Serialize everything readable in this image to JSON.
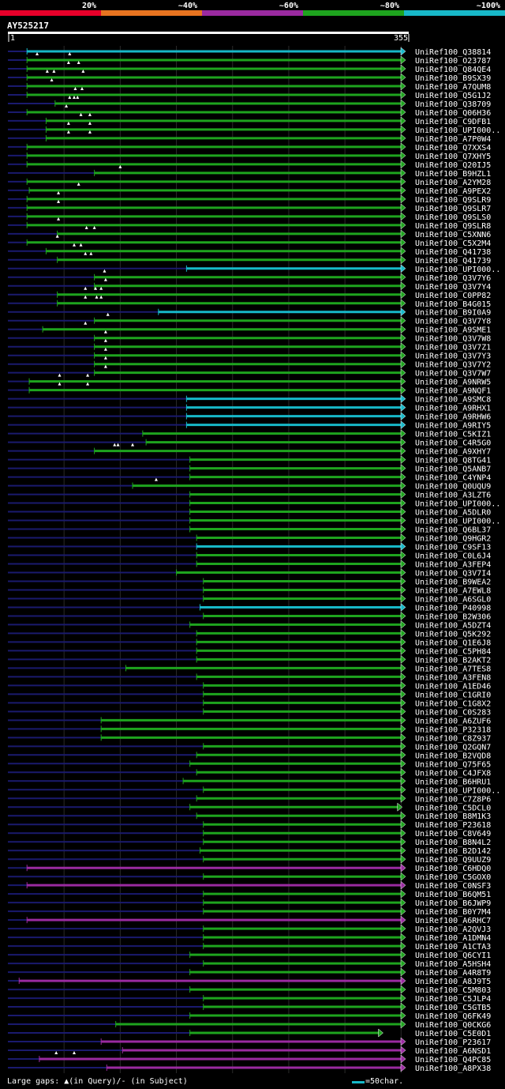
{
  "chart_data": {
    "type": "alignment-overview",
    "query_id": "AY525217",
    "scale": {
      "start_label": "1",
      "end_label": "355",
      "min": 1,
      "max": 355
    },
    "color_scale": [
      {
        "label": "20%",
        "color": "#e8002a"
      },
      {
        "label": "~40%",
        "color": "#e87420"
      },
      {
        "label": "~60%",
        "color": "#9a2aa0"
      },
      {
        "label": "~80%",
        "color": "#1ea41e"
      },
      {
        "label": "~100%",
        "color": "#17b8c8"
      }
    ],
    "footer": {
      "gaps_text": "Large gaps: ▲(in Query)/- (in Subject)",
      "scale_text": "=50char."
    },
    "hits": [
      {
        "name": "UniRef100_Q38814",
        "start": 18,
        "end": 355,
        "cls": 4,
        "qgaps": []
      },
      {
        "name": "UniRef100_O23787",
        "start": 18,
        "end": 355,
        "cls": 3,
        "qgaps": [
          27,
          56
        ]
      },
      {
        "name": "UniRef100_Q84QE4",
        "start": 18,
        "end": 355,
        "cls": 3,
        "qgaps": [
          55,
          64
        ]
      },
      {
        "name": "UniRef100_B9SX39",
        "start": 18,
        "end": 355,
        "cls": 3,
        "qgaps": [
          36,
          42,
          68
        ]
      },
      {
        "name": "UniRef100_A7QUM8",
        "start": 18,
        "end": 355,
        "cls": 3,
        "qgaps": [
          40
        ]
      },
      {
        "name": "UniRef100_Q5G1J2",
        "start": 18,
        "end": 355,
        "cls": 3,
        "qgaps": [
          61,
          67
        ]
      },
      {
        "name": "UniRef100_Q38709",
        "start": 43,
        "end": 355,
        "cls": 3,
        "qgaps": [
          56,
          60,
          63
        ]
      },
      {
        "name": "UniRef100_Q06H36",
        "start": 18,
        "end": 355,
        "cls": 3,
        "qgaps": [
          53
        ]
      },
      {
        "name": "UniRef100_C9DFB1",
        "start": 35,
        "end": 355,
        "cls": 3,
        "qgaps": [
          66,
          74
        ]
      },
      {
        "name": "UniRef100_UPI000..",
        "start": 35,
        "end": 355,
        "cls": 3,
        "qgaps": [
          55,
          74
        ]
      },
      {
        "name": "UniRef100_A7P0W4",
        "start": 35,
        "end": 355,
        "cls": 3,
        "qgaps": [
          55,
          74
        ]
      },
      {
        "name": "UniRef100_Q7XXS4",
        "start": 18,
        "end": 355,
        "cls": 3,
        "qgaps": []
      },
      {
        "name": "UniRef100_Q7XHY5",
        "start": 18,
        "end": 355,
        "cls": 3,
        "qgaps": []
      },
      {
        "name": "UniRef100_Q20IJ5",
        "start": 18,
        "end": 355,
        "cls": 3,
        "qgaps": []
      },
      {
        "name": "UniRef100_B9HZL1",
        "start": 78,
        "end": 355,
        "cls": 3,
        "qgaps": [
          101
        ]
      },
      {
        "name": "UniRef100_A2YM28",
        "start": 18,
        "end": 355,
        "cls": 3,
        "qgaps": []
      },
      {
        "name": "UniRef100_A9PEX2",
        "start": 20,
        "end": 355,
        "cls": 3,
        "qgaps": [
          64
        ]
      },
      {
        "name": "UniRef100_Q9SLR9",
        "start": 18,
        "end": 355,
        "cls": 3,
        "qgaps": [
          46
        ]
      },
      {
        "name": "UniRef100_Q9SLR7",
        "start": 18,
        "end": 355,
        "cls": 3,
        "qgaps": [
          46
        ]
      },
      {
        "name": "UniRef100_Q9SLS0",
        "start": 18,
        "end": 355,
        "cls": 3,
        "qgaps": []
      },
      {
        "name": "UniRef100_Q9SLR8",
        "start": 18,
        "end": 355,
        "cls": 3,
        "qgaps": [
          46
        ]
      },
      {
        "name": "UniRef100_C5XNN6",
        "start": 45,
        "end": 355,
        "cls": 3,
        "qgaps": [
          71,
          78
        ]
      },
      {
        "name": "UniRef100_C5X2M4",
        "start": 18,
        "end": 355,
        "cls": 3,
        "qgaps": [
          45
        ]
      },
      {
        "name": "UniRef100_Q41738",
        "start": 35,
        "end": 355,
        "cls": 3,
        "qgaps": [
          60,
          66
        ]
      },
      {
        "name": "UniRef100_Q41739",
        "start": 45,
        "end": 355,
        "cls": 3,
        "qgaps": [
          70,
          75
        ]
      },
      {
        "name": "UniRef100_UPI000..",
        "start": 160,
        "end": 355,
        "cls": 4,
        "qgaps": []
      },
      {
        "name": "UniRef100_Q3V7Y6",
        "start": 78,
        "end": 355,
        "cls": 3,
        "qgaps": [
          87
        ]
      },
      {
        "name": "UniRef100_Q3V7Y4",
        "start": 78,
        "end": 355,
        "cls": 3,
        "qgaps": [
          88
        ]
      },
      {
        "name": "UniRef100_C0PP82",
        "start": 45,
        "end": 355,
        "cls": 3,
        "qgaps": [
          70,
          79,
          84
        ]
      },
      {
        "name": "UniRef100_B4G015",
        "start": 45,
        "end": 355,
        "cls": 3,
        "qgaps": [
          70,
          80,
          84
        ]
      },
      {
        "name": "UniRef100_B9I0A9",
        "start": 135,
        "end": 355,
        "cls": 4,
        "qgaps": []
      },
      {
        "name": "UniRef100_Q3V7Y8",
        "start": 78,
        "end": 355,
        "cls": 3,
        "qgaps": [
          90
        ]
      },
      {
        "name": "UniRef100_A9SME1",
        "start": 32,
        "end": 355,
        "cls": 3,
        "qgaps": [
          70
        ]
      },
      {
        "name": "UniRef100_Q3V7W8",
        "start": 78,
        "end": 355,
        "cls": 3,
        "qgaps": [
          88
        ]
      },
      {
        "name": "UniRef100_Q3V7Z1",
        "start": 78,
        "end": 355,
        "cls": 3,
        "qgaps": [
          88
        ]
      },
      {
        "name": "UniRef100_Q3V7Y3",
        "start": 78,
        "end": 355,
        "cls": 3,
        "qgaps": [
          88
        ]
      },
      {
        "name": "UniRef100_Q3V7Y2",
        "start": 78,
        "end": 355,
        "cls": 3,
        "qgaps": [
          88
        ]
      },
      {
        "name": "UniRef100_Q3V7W7",
        "start": 78,
        "end": 355,
        "cls": 3,
        "qgaps": [
          88
        ]
      },
      {
        "name": "UniRef100_A9NRW5",
        "start": 20,
        "end": 355,
        "cls": 3,
        "qgaps": [
          47,
          72
        ]
      },
      {
        "name": "UniRef100_A9NQF1",
        "start": 20,
        "end": 355,
        "cls": 3,
        "qgaps": [
          47,
          72
        ]
      },
      {
        "name": "UniRef100_A9SMC8",
        "start": 160,
        "end": 355,
        "cls": 4,
        "qgaps": []
      },
      {
        "name": "UniRef100_A9RHX1",
        "start": 160,
        "end": 355,
        "cls": 4,
        "qgaps": []
      },
      {
        "name": "UniRef100_A9RHW6",
        "start": 160,
        "end": 355,
        "cls": 4,
        "qgaps": []
      },
      {
        "name": "UniRef100_A9RIY5",
        "start": 160,
        "end": 355,
        "cls": 4,
        "qgaps": []
      },
      {
        "name": "UniRef100_C5KIZ1",
        "start": 121,
        "end": 355,
        "cls": 3,
        "qgaps": []
      },
      {
        "name": "UniRef100_C4R5G0",
        "start": 124,
        "end": 355,
        "cls": 3,
        "qgaps": []
      },
      {
        "name": "UniRef100_A9XHY7",
        "start": 78,
        "end": 355,
        "cls": 3,
        "qgaps": [
          96,
          99,
          112
        ]
      },
      {
        "name": "UniRef100_Q8TG41",
        "start": 163,
        "end": 355,
        "cls": 3,
        "qgaps": []
      },
      {
        "name": "UniRef100_Q5ANB7",
        "start": 163,
        "end": 355,
        "cls": 3,
        "qgaps": []
      },
      {
        "name": "UniRef100_C4YNP4",
        "start": 163,
        "end": 355,
        "cls": 3,
        "qgaps": []
      },
      {
        "name": "UniRef100_Q0UQU9",
        "start": 112,
        "end": 355,
        "cls": 3,
        "qgaps": [
          133
        ]
      },
      {
        "name": "UniRef100_A3LZT6",
        "start": 163,
        "end": 355,
        "cls": 3,
        "qgaps": []
      },
      {
        "name": "UniRef100_UPI000..",
        "start": 163,
        "end": 355,
        "cls": 3,
        "qgaps": []
      },
      {
        "name": "UniRef100_A5DLR0",
        "start": 163,
        "end": 355,
        "cls": 3,
        "qgaps": []
      },
      {
        "name": "UniRef100_UPI000..",
        "start": 163,
        "end": 355,
        "cls": 3,
        "qgaps": []
      },
      {
        "name": "UniRef100_Q6BL37",
        "start": 163,
        "end": 355,
        "cls": 3,
        "qgaps": []
      },
      {
        "name": "UniRef100_Q9HGR2",
        "start": 169,
        "end": 355,
        "cls": 3,
        "qgaps": []
      },
      {
        "name": "UniRef100_C9SF13",
        "start": 169,
        "end": 355,
        "cls": 4,
        "qgaps": []
      },
      {
        "name": "UniRef100_C0L6J4",
        "start": 169,
        "end": 355,
        "cls": 3,
        "qgaps": []
      },
      {
        "name": "UniRef100_A3FEP4",
        "start": 169,
        "end": 355,
        "cls": 3,
        "qgaps": []
      },
      {
        "name": "UniRef100_Q3V7I4",
        "start": 151,
        "end": 355,
        "cls": 3,
        "qgaps": []
      },
      {
        "name": "UniRef100_B9WEA2",
        "start": 175,
        "end": 355,
        "cls": 3,
        "qgaps": []
      },
      {
        "name": "UniRef100_A7EWL8",
        "start": 175,
        "end": 355,
        "cls": 3,
        "qgaps": []
      },
      {
        "name": "UniRef100_A6SGL0",
        "start": 175,
        "end": 355,
        "cls": 3,
        "qgaps": []
      },
      {
        "name": "UniRef100_P40998",
        "start": 172,
        "end": 355,
        "cls": 4,
        "qgaps": []
      },
      {
        "name": "UniRef100_B2W306",
        "start": 175,
        "end": 355,
        "cls": 3,
        "qgaps": []
      },
      {
        "name": "UniRef100_A5DZT4",
        "start": 163,
        "end": 355,
        "cls": 3,
        "qgaps": []
      },
      {
        "name": "UniRef100_Q5K292",
        "start": 169,
        "end": 355,
        "cls": 3,
        "qgaps": []
      },
      {
        "name": "UniRef100_Q1E6J8",
        "start": 169,
        "end": 355,
        "cls": 3,
        "qgaps": []
      },
      {
        "name": "UniRef100_C5PH84",
        "start": 169,
        "end": 355,
        "cls": 3,
        "qgaps": []
      },
      {
        "name": "UniRef100_B2AKT2",
        "start": 169,
        "end": 355,
        "cls": 3,
        "qgaps": []
      },
      {
        "name": "UniRef100_A7TES8",
        "start": 106,
        "end": 355,
        "cls": 3,
        "qgaps": []
      },
      {
        "name": "UniRef100_A3FEN8",
        "start": 169,
        "end": 355,
        "cls": 3,
        "qgaps": []
      },
      {
        "name": "UniRef100_A1ED46",
        "start": 175,
        "end": 355,
        "cls": 3,
        "qgaps": []
      },
      {
        "name": "UniRef100_C1GRI0",
        "start": 175,
        "end": 355,
        "cls": 3,
        "qgaps": []
      },
      {
        "name": "UniRef100_C1G8X2",
        "start": 175,
        "end": 355,
        "cls": 3,
        "qgaps": []
      },
      {
        "name": "UniRef100_C0S283",
        "start": 175,
        "end": 355,
        "cls": 3,
        "qgaps": []
      },
      {
        "name": "UniRef100_A6ZUF6",
        "start": 84,
        "end": 355,
        "cls": 3,
        "qgaps": []
      },
      {
        "name": "UniRef100_P32318",
        "start": 84,
        "end": 355,
        "cls": 3,
        "qgaps": []
      },
      {
        "name": "UniRef100_C8Z937",
        "start": 84,
        "end": 355,
        "cls": 3,
        "qgaps": []
      },
      {
        "name": "UniRef100_Q2GQN7",
        "start": 175,
        "end": 355,
        "cls": 3,
        "qgaps": []
      },
      {
        "name": "UniRef100_B2VQD8",
        "start": 169,
        "end": 355,
        "cls": 3,
        "qgaps": []
      },
      {
        "name": "UniRef100_Q75F65",
        "start": 163,
        "end": 355,
        "cls": 3,
        "qgaps": []
      },
      {
        "name": "UniRef100_C4JFX8",
        "start": 169,
        "end": 355,
        "cls": 3,
        "qgaps": []
      },
      {
        "name": "UniRef100_B6HRU1",
        "start": 157,
        "end": 355,
        "cls": 3,
        "qgaps": []
      },
      {
        "name": "UniRef100_UPI000..",
        "start": 175,
        "end": 355,
        "cls": 3,
        "qgaps": []
      },
      {
        "name": "UniRef100_C7Z8P6",
        "start": 169,
        "end": 355,
        "cls": 3,
        "qgaps": []
      },
      {
        "name": "UniRef100_C5DCL0",
        "start": 163,
        "end": 352,
        "cls": 3,
        "qgaps": []
      },
      {
        "name": "UniRef100_B8M1K3",
        "start": 169,
        "end": 355,
        "cls": 3,
        "qgaps": []
      },
      {
        "name": "UniRef100_P23618",
        "start": 175,
        "end": 355,
        "cls": 3,
        "qgaps": []
      },
      {
        "name": "UniRef100_C8V649",
        "start": 175,
        "end": 355,
        "cls": 3,
        "qgaps": []
      },
      {
        "name": "UniRef100_B8N4L2",
        "start": 175,
        "end": 355,
        "cls": 3,
        "qgaps": []
      },
      {
        "name": "UniRef100_B2D142",
        "start": 172,
        "end": 355,
        "cls": 3,
        "qgaps": []
      },
      {
        "name": "UniRef100_Q9UUZ9",
        "start": 175,
        "end": 355,
        "cls": 3,
        "qgaps": []
      },
      {
        "name": "UniRef100_C6HDQ0",
        "start": 18,
        "end": 355,
        "cls": 2,
        "qgaps": []
      },
      {
        "name": "UniRef100_C5GOX0",
        "start": 175,
        "end": 355,
        "cls": 3,
        "qgaps": []
      },
      {
        "name": "UniRef100_C0NSF3",
        "start": 18,
        "end": 355,
        "cls": 2,
        "qgaps": []
      },
      {
        "name": "UniRef100_B6QM51",
        "start": 175,
        "end": 355,
        "cls": 3,
        "qgaps": []
      },
      {
        "name": "UniRef100_B6JWP9",
        "start": 175,
        "end": 355,
        "cls": 3,
        "qgaps": []
      },
      {
        "name": "UniRef100_B0Y7M4",
        "start": 175,
        "end": 355,
        "cls": 3,
        "qgaps": []
      },
      {
        "name": "UniRef100_A6RHC7",
        "start": 18,
        "end": 355,
        "cls": 2,
        "qgaps": []
      },
      {
        "name": "UniRef100_A2QVJ3",
        "start": 175,
        "end": 355,
        "cls": 3,
        "qgaps": []
      },
      {
        "name": "UniRef100_A1DMN4",
        "start": 175,
        "end": 355,
        "cls": 3,
        "qgaps": []
      },
      {
        "name": "UniRef100_A1CTA3",
        "start": 175,
        "end": 355,
        "cls": 3,
        "qgaps": []
      },
      {
        "name": "UniRef100_Q6CYI1",
        "start": 163,
        "end": 355,
        "cls": 3,
        "qgaps": []
      },
      {
        "name": "UniRef100_A5HSH4",
        "start": 175,
        "end": 355,
        "cls": 3,
        "qgaps": []
      },
      {
        "name": "UniRef100_A4R8T9",
        "start": 163,
        "end": 355,
        "cls": 3,
        "qgaps": []
      },
      {
        "name": "UniRef100_A8J9T5",
        "start": 11,
        "end": 355,
        "cls": 2,
        "qgaps": []
      },
      {
        "name": "UniRef100_C5M803",
        "start": 163,
        "end": 355,
        "cls": 3,
        "qgaps": []
      },
      {
        "name": "UniRef100_C5JLP4",
        "start": 175,
        "end": 355,
        "cls": 3,
        "qgaps": []
      },
      {
        "name": "UniRef100_C5GTB5",
        "start": 175,
        "end": 355,
        "cls": 3,
        "qgaps": []
      },
      {
        "name": "UniRef100_Q6FK49",
        "start": 163,
        "end": 355,
        "cls": 3,
        "qgaps": []
      },
      {
        "name": "UniRef100_Q0CKG6",
        "start": 97,
        "end": 355,
        "cls": 3,
        "qgaps": []
      },
      {
        "name": "UniRef100_C5E0D1",
        "start": 163,
        "end": 335,
        "cls": 3,
        "qgaps": []
      },
      {
        "name": "UniRef100_P23617",
        "start": 84,
        "end": 355,
        "cls": 2,
        "qgaps": []
      },
      {
        "name": "UniRef100_A6NSD1",
        "start": 103,
        "end": 355,
        "cls": 2,
        "qgaps": []
      },
      {
        "name": "UniRef100_Q4PC85",
        "start": 29,
        "end": 355,
        "cls": 2,
        "qgaps": [
          44,
          60
        ]
      },
      {
        "name": "UniRef100_A8PX38",
        "start": 89,
        "end": 355,
        "cls": 2,
        "qgaps": []
      }
    ]
  }
}
